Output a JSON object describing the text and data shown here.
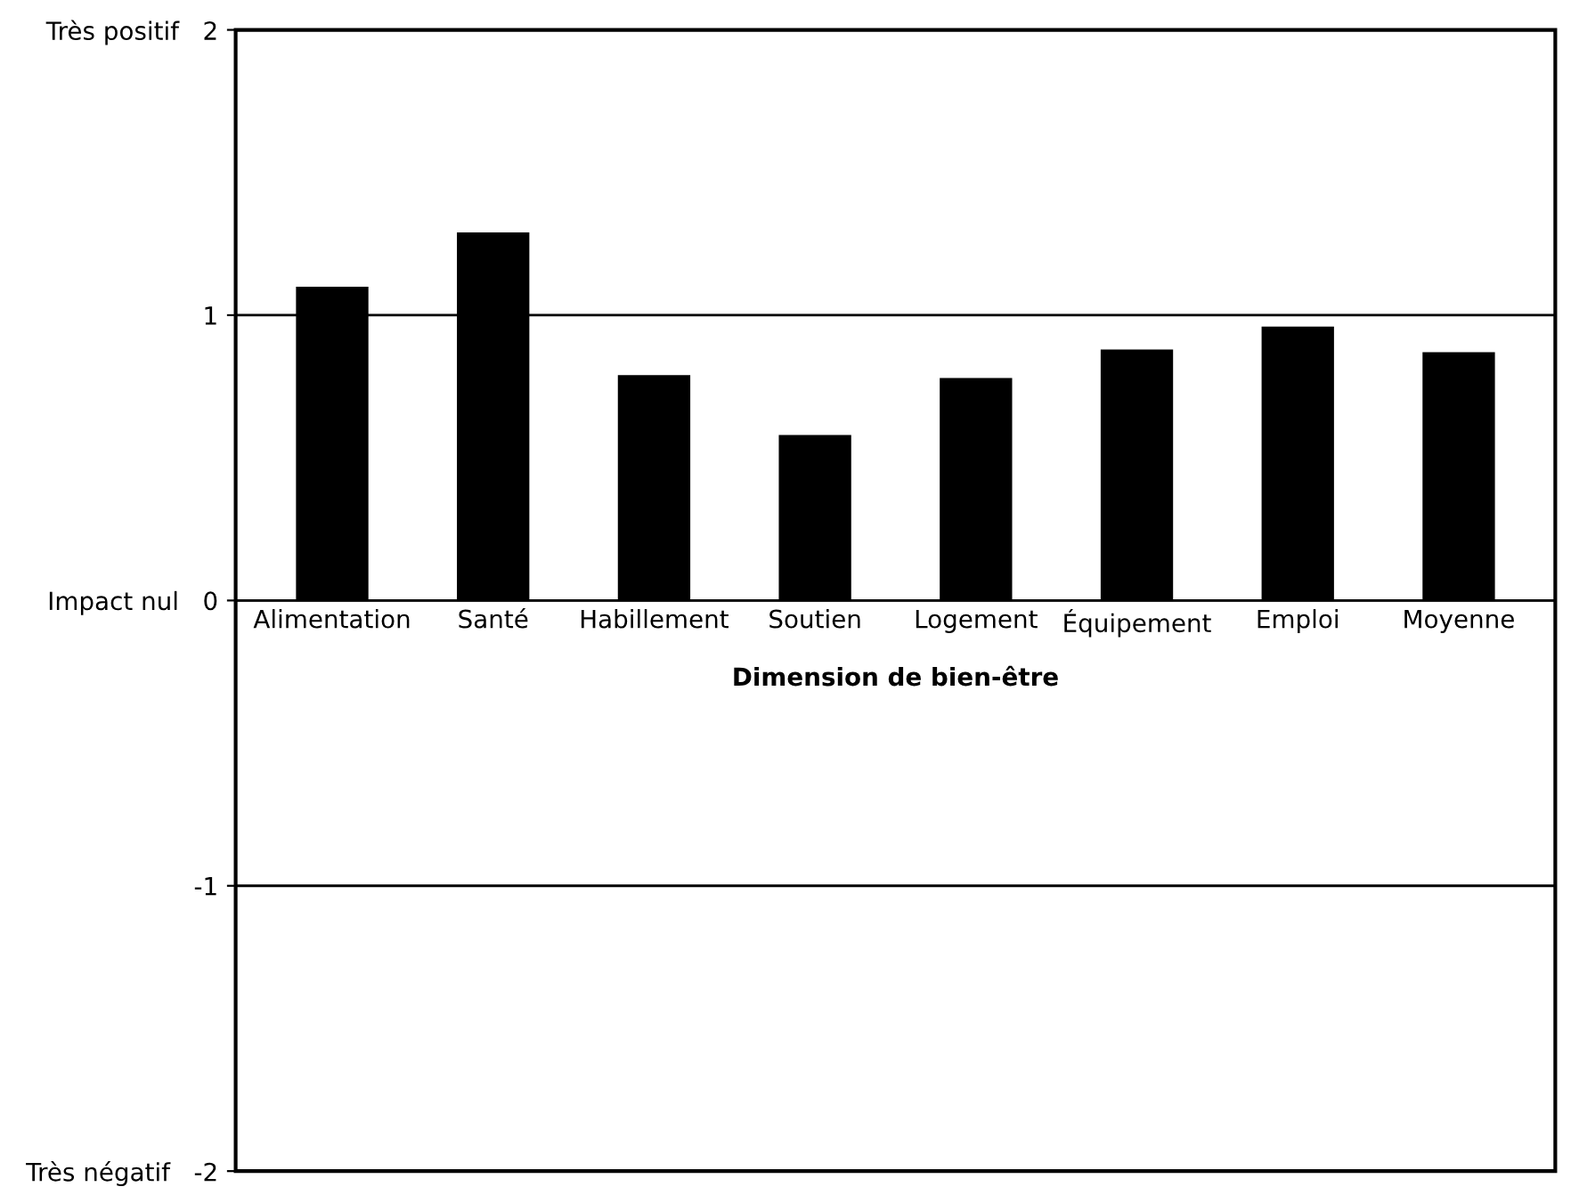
{
  "chart_data": {
    "type": "bar",
    "xlabel": "Dimension de bien-être",
    "categories": [
      "Alimentation",
      "Santé",
      "Habillement",
      "Soutien",
      "Logement",
      "Équipement",
      "Emploi",
      "Moyenne"
    ],
    "values": [
      1.1,
      1.29,
      0.79,
      0.58,
      0.78,
      0.88,
      0.96,
      0.87
    ],
    "color": "#000000",
    "ylim": [
      -2,
      2
    ],
    "yticks": [
      {
        "value": -2,
        "label": "Très négatif   -2"
      },
      -1,
      {
        "value": 0,
        "label": "Impact nul   0"
      },
      1,
      {
        "value": 2,
        "label": "Très positif   2"
      }
    ],
    "grid": "y",
    "legend": false
  }
}
